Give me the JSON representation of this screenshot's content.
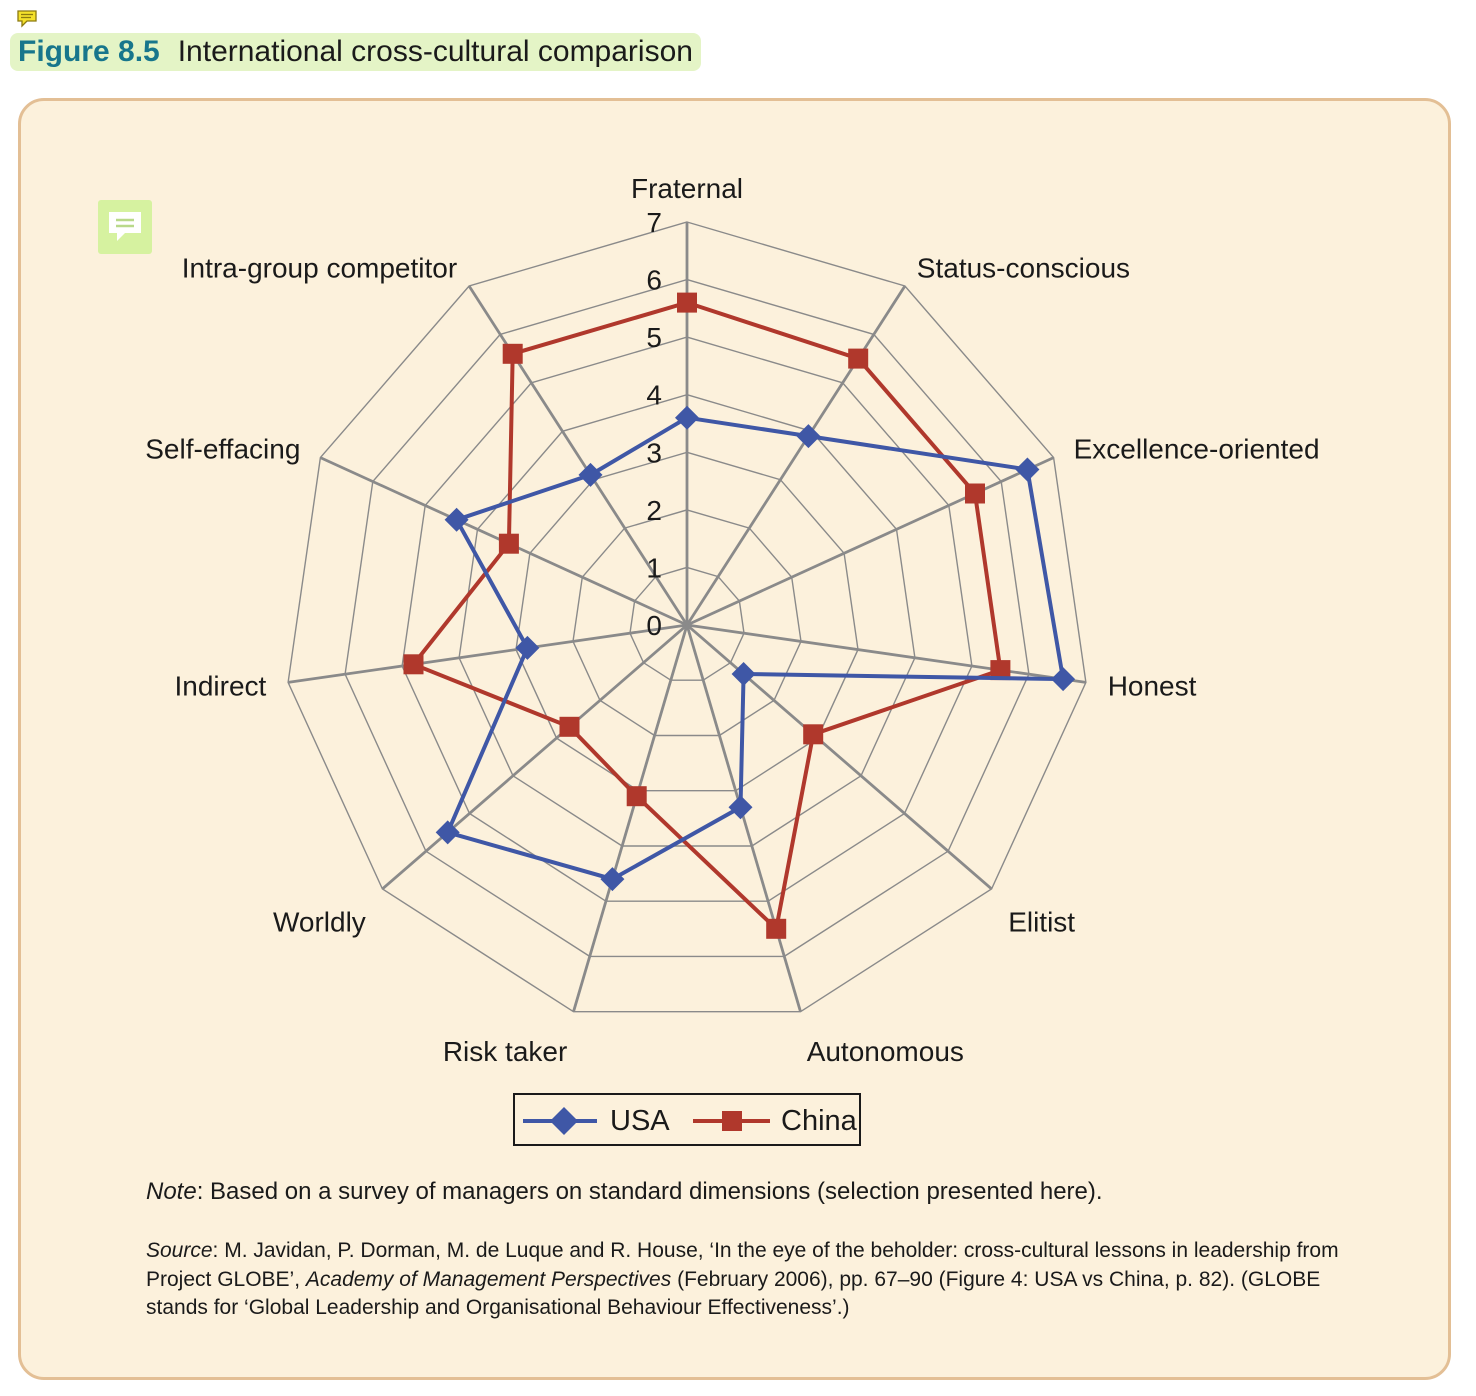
{
  "figure": {
    "number": "Figure 8.5",
    "title": "International cross-cultural comparison"
  },
  "chart_data": {
    "type": "radar",
    "axes": [
      "Fraternal",
      "Status-conscious",
      "Excellence-oriented",
      "Honest",
      "Elitist",
      "Autonomous",
      "Risk taker",
      "Worldly",
      "Indirect",
      "Self-effacing",
      "Intra-group competitor"
    ],
    "rlim": [
      0,
      7
    ],
    "ticks": [
      0,
      1,
      2,
      3,
      4,
      5,
      6,
      7
    ],
    "tick_labels": [
      "0",
      "1",
      "2",
      "3",
      "4",
      "5",
      "6",
      "7"
    ],
    "grid": true,
    "series": [
      {
        "name": "USA",
        "color": "#3f57a6",
        "marker": "diamond",
        "values": [
          3.6,
          3.9,
          6.5,
          6.6,
          1.3,
          3.3,
          4.6,
          5.5,
          2.8,
          4.4,
          3.1
        ]
      },
      {
        "name": "China",
        "color": "#b0382c",
        "marker": "square",
        "values": [
          5.6,
          5.5,
          5.5,
          5.5,
          2.9,
          5.5,
          3.1,
          2.7,
          4.8,
          3.4,
          5.6
        ]
      }
    ],
    "legend_position": "bottom"
  },
  "legend": {
    "usa": "USA",
    "china": "China"
  },
  "note": {
    "label": "Note",
    "text": ": Based on a survey of managers on standard dimensions (selection presented here)."
  },
  "source": {
    "label": "Source",
    "text1": ": M. Javidan, P. Dorman, M. de Luque and R. House, ‘In the eye of the beholder: cross-cultural lessons in leadership from Project GLOBE’, ",
    "journal": "Academy of Management Perspectives",
    "text2": " (February 2006), pp. 67–90 (Figure 4: USA vs China, p. 82). (GLOBE stands for ‘Global Leadership and Organisational Behaviour Effectiveness’.)"
  },
  "colors": {
    "panel_background": "#fcf1dc",
    "panel_border": "#e3bf95",
    "heading_background": "#e4f4c6",
    "figure_number": "#17768c",
    "grid": "#8a8a8a"
  },
  "icons": [
    "comment-note-icon"
  ]
}
